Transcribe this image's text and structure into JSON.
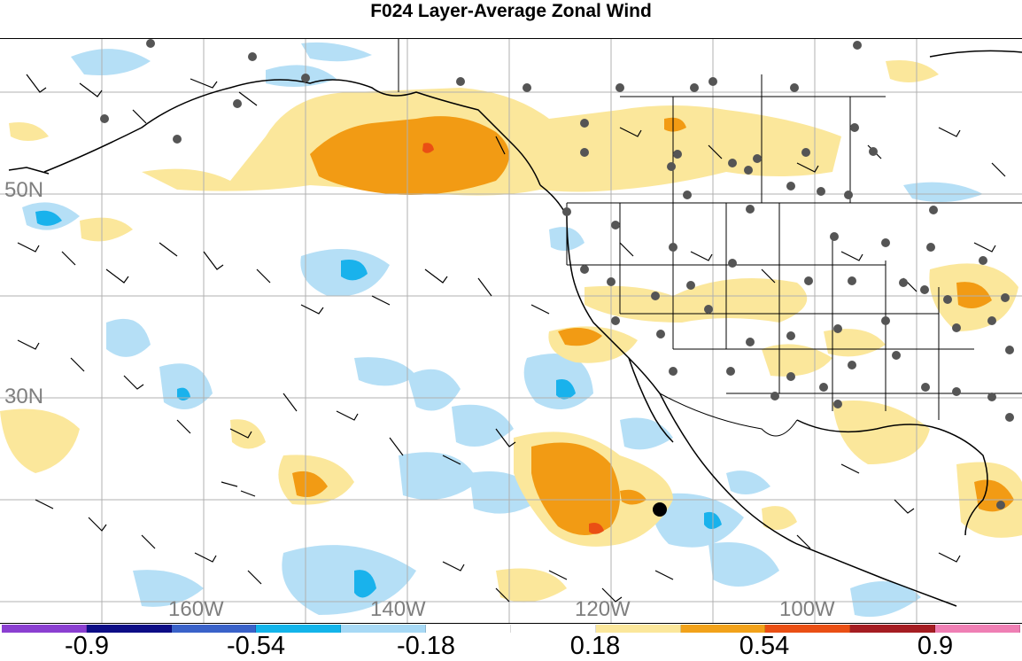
{
  "title": "F024 Layer-Average Zonal Wind",
  "lat_labels": [
    "50N",
    "30N"
  ],
  "lon_labels": [
    "160W",
    "140W",
    "120W",
    "100W"
  ],
  "colorbar": {
    "colors": [
      "#8b3fd1",
      "#0d0d86",
      "#3a62c9",
      "#13b4ea",
      "#a7d9f5",
      "#ffffff",
      "#ffffff",
      "#fbe79b",
      "#f2a21a",
      "#ea4f14",
      "#a51d22",
      "#ef7fb4"
    ],
    "labels": [
      "-0.9",
      "-0.54",
      "-0.18",
      "0.18",
      "0.54",
      "0.9"
    ]
  },
  "shading_colors": {
    "light_blue": "#b5dff6",
    "blue": "#19b2ec",
    "light_yellow": "#fbe79b",
    "orange": "#f29b14",
    "red": "#ea4f14"
  },
  "marker": {
    "type": "large-black-dot"
  }
}
